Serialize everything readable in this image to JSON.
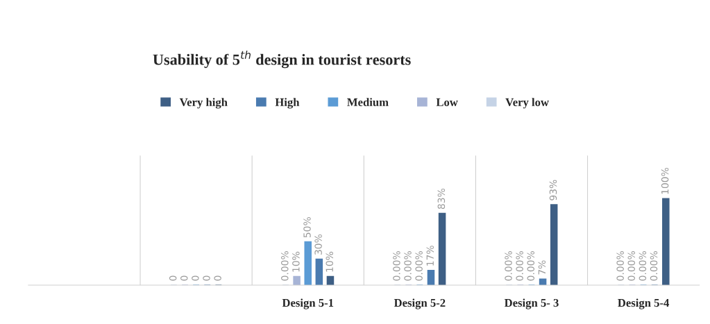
{
  "chart_data": {
    "type": "bar",
    "title": "Usability of 5$^{th}$ design in tourist resorts",
    "categories": [
      null,
      null,
      "Design 5-1",
      "Design 5-2",
      "Design 5- 3",
      "Design 5-4"
    ],
    "series": [
      {
        "name": "Very high",
        "color": "#3e5f85",
        "values": [
          null,
          0,
          10,
          83,
          93,
          100
        ],
        "value_labels": [
          null,
          "0",
          "10%",
          "83%",
          "93%",
          "100%"
        ]
      },
      {
        "name": "High",
        "color": "#4a7bb0",
        "values": [
          null,
          0,
          30,
          17,
          7,
          0
        ],
        "value_labels": [
          null,
          "0",
          "30%",
          "17%",
          "7%",
          "0.00%"
        ]
      },
      {
        "name": "Medium",
        "color": "#5b9bd5",
        "values": [
          null,
          0,
          50,
          0,
          0,
          0
        ],
        "value_labels": [
          null,
          "0",
          "50%",
          "0.00%",
          "0.00%",
          "0.00%"
        ]
      },
      {
        "name": "Low",
        "color": "#a7b4d6",
        "values": [
          null,
          0,
          10,
          0,
          0,
          0
        ],
        "value_labels": [
          null,
          "0",
          "10%",
          "0.00%",
          "0.00%",
          "0.00%"
        ]
      },
      {
        "name": "Very low",
        "color": "#c5d3e6",
        "values": [
          null,
          0,
          0,
          0,
          0,
          0
        ],
        "value_labels": [
          null,
          "0",
          "0.00%",
          "0.00%",
          "0.00%",
          "0.00%"
        ]
      }
    ],
    "ylim": [
      0,
      150
    ],
    "tick_labels": "x",
    "grid": "x",
    "legend": "top"
  }
}
